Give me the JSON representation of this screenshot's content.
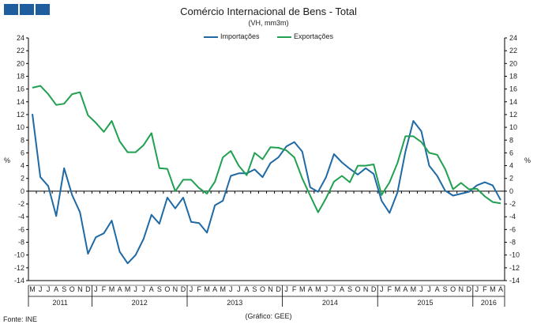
{
  "header": {
    "logo_icon": "institution-logo-blocks",
    "logo_color": "#1f5e9e"
  },
  "chart_data": {
    "type": "line",
    "title": "Comércio Internacional de Bens - Total",
    "subtitle": "(VH, mm3m)",
    "ylabel_left": "%",
    "ylabel_right": "%",
    "ylim": [
      -14,
      24
    ],
    "yticks": [
      -14,
      -12,
      -10,
      -8,
      -6,
      -4,
      -2,
      0,
      2,
      4,
      6,
      8,
      10,
      12,
      14,
      16,
      18,
      20,
      22,
      24
    ],
    "grid": false,
    "legend_position": "top-center",
    "month_labels": [
      "M",
      "J",
      "J",
      "A",
      "S",
      "O",
      "N",
      "D",
      "J",
      "F",
      "M",
      "A",
      "M",
      "J",
      "J",
      "A",
      "S",
      "O",
      "N",
      "D",
      "J",
      "F",
      "M",
      "A",
      "M",
      "J",
      "J",
      "A",
      "S",
      "O",
      "N",
      "D",
      "J",
      "F",
      "M",
      "A",
      "M",
      "J",
      "J",
      "A",
      "S",
      "O",
      "N",
      "D",
      "J",
      "F",
      "M",
      "A",
      "M",
      "J",
      "J",
      "A",
      "S",
      "O",
      "N",
      "D",
      "J",
      "F",
      "M",
      "A"
    ],
    "years": [
      {
        "label": "2011",
        "start": 0,
        "end": 7
      },
      {
        "label": "2012",
        "start": 8,
        "end": 19
      },
      {
        "label": "2013",
        "start": 20,
        "end": 31
      },
      {
        "label": "2014",
        "start": 32,
        "end": 43
      },
      {
        "label": "2015",
        "start": 44,
        "end": 55
      },
      {
        "label": "2016",
        "start": 56,
        "end": 59
      }
    ],
    "series": [
      {
        "name": "Importações",
        "color": "#1f6aa5",
        "values": [
          12.1,
          2.2,
          0.8,
          -3.9,
          3.6,
          -0.6,
          -3.3,
          -9.8,
          -7.2,
          -6.6,
          -4.6,
          -9.5,
          -11.3,
          -10.0,
          -7.5,
          -3.7,
          -5.1,
          -1.0,
          -2.7,
          -1.0,
          -4.8,
          -5.0,
          -6.5,
          -2.2,
          -1.5,
          2.4,
          2.8,
          2.8,
          3.4,
          2.2,
          4.4,
          5.3,
          7.0,
          7.7,
          6.2,
          0.6,
          -0.1,
          2.2,
          5.8,
          4.5,
          3.5,
          2.6,
          3.6,
          2.7,
          -1.5,
          -3.4,
          -0.2,
          6.2,
          11.0,
          9.4,
          4.0,
          2.4,
          0.1,
          -0.7,
          -0.4,
          -0.1,
          0.9,
          1.4,
          0.9,
          -1.4
        ]
      },
      {
        "name": "Exportações",
        "color": "#20a050",
        "values": [
          16.2,
          16.5,
          15.2,
          13.5,
          13.7,
          15.2,
          15.5,
          11.9,
          10.7,
          9.3,
          11.0,
          7.8,
          6.1,
          6.1,
          7.2,
          9.1,
          3.6,
          3.5,
          0.0,
          1.8,
          1.8,
          0.5,
          -0.4,
          1.5,
          5.3,
          6.3,
          4.0,
          2.5,
          6.0,
          5.0,
          6.9,
          6.8,
          6.4,
          5.3,
          2.0,
          -0.7,
          -3.3,
          -1.1,
          1.5,
          2.4,
          1.4,
          4.0,
          4.0,
          4.2,
          -0.6,
          1.4,
          4.4,
          8.6,
          8.6,
          7.7,
          6.0,
          5.7,
          3.5,
          0.3,
          1.3,
          0.3,
          0.4,
          -0.8,
          -1.7,
          -1.9
        ]
      }
    ]
  },
  "footer": {
    "source": "Fonte: INE",
    "credit": "(Gráfico: GEE)"
  }
}
